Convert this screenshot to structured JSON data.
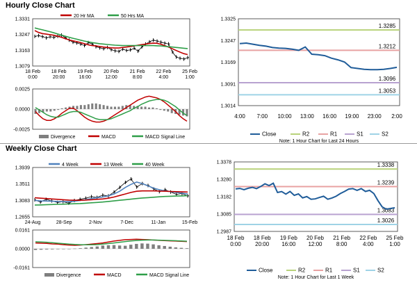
{
  "sections": {
    "hourly": {
      "title": "Hourly Close Chart"
    },
    "weekly": {
      "title": "Weekly Close Chart"
    }
  },
  "colors": {
    "close": "#1f5c99",
    "r2": "#b8d27a",
    "r1": "#e8a2a2",
    "s1": "#b8a2d0",
    "s2": "#9fd3e6",
    "ma_short": "#c00000",
    "ma_long": "#2e9e48",
    "ma4": "#4f81bd",
    "macd": "#c00000",
    "signal": "#2e9e48",
    "divergence": "#7f7f7f",
    "price": "#000000"
  },
  "chart_data": [
    {
      "id": "hourly-price",
      "type": "line",
      "title": "",
      "legend": [
        "20 Hr MA",
        "50 Hrs MA"
      ],
      "y_ticks": [
        "1.3331",
        "1.3247",
        "1.3163",
        "1.3079"
      ],
      "ylim": [
        1.3079,
        1.3331
      ],
      "x_ticks": [
        [
          "18 Feb",
          "0:00"
        ],
        [
          "18 Feb",
          "20:00"
        ],
        [
          "19 Feb",
          "16:00"
        ],
        [
          "20 Feb",
          "12:00"
        ],
        [
          "21 Feb",
          "8:00"
        ],
        [
          "22 Feb",
          "4:00"
        ],
        [
          "25 Feb",
          "1:00"
        ]
      ],
      "series": [
        {
          "name": "Close",
          "values": [
            1.3237,
            1.3241,
            1.3236,
            1.3229,
            1.3235,
            1.3232,
            1.3238,
            1.3244,
            1.323,
            1.3217,
            1.3206,
            1.3202,
            1.3196,
            1.3188,
            1.3204,
            1.3197,
            1.3182,
            1.3176,
            1.3171,
            1.3178,
            1.3166,
            1.316,
            1.3157,
            1.3169,
            1.3162,
            1.3165,
            1.3174,
            1.3158,
            1.3181,
            1.3196,
            1.3208,
            1.3217,
            1.3212,
            1.3206,
            1.3201,
            1.3197,
            1.3154,
            1.3127,
            1.312,
            1.3116,
            1.3124
          ]
        },
        {
          "name": "20 Hr MA",
          "values": [
            1.3268,
            1.3258,
            1.3252,
            1.3249,
            1.3246,
            1.3243,
            1.3238,
            1.3232,
            1.3225,
            1.3218,
            1.3213,
            1.3209,
            1.3204,
            1.3198,
            1.3192,
            1.3188,
            1.3186,
            1.3183,
            1.318,
            1.3178,
            1.3176,
            1.3175,
            1.3175,
            1.3178,
            1.318,
            1.3183,
            1.3186,
            1.319,
            1.3193,
            1.3196,
            1.3199,
            1.3201,
            1.32,
            1.3195,
            1.3188,
            1.318,
            1.3171,
            1.3162,
            1.3153,
            1.3145,
            1.314
          ]
        },
        {
          "name": "50 Hrs MA",
          "values": [
            1.3282,
            1.3277,
            1.3272,
            1.3267,
            1.3262,
            1.3256,
            1.325,
            1.3244,
            1.3238,
            1.3232,
            1.3227,
            1.3222,
            1.3217,
            1.3212,
            1.3208,
            1.3204,
            1.3201,
            1.3198,
            1.3196,
            1.3194,
            1.3192,
            1.319,
            1.3189,
            1.3188,
            1.3188,
            1.3188,
            1.3188,
            1.3188,
            1.3188,
            1.3188,
            1.3188,
            1.3188,
            1.3187,
            1.3186,
            1.3184,
            1.3182,
            1.318,
            1.3178,
            1.3176,
            1.3174,
            1.3172
          ]
        }
      ]
    },
    {
      "id": "hourly-macd",
      "type": "bar",
      "y_ticks": [
        "0.0025",
        "0.0000",
        "-0.0025"
      ],
      "ylim": [
        -0.0025,
        0.0025
      ],
      "legend": [
        "Divergence",
        "MACD",
        "MACD Signal Line"
      ],
      "series": [
        {
          "name": "Divergence",
          "values": [
            -0.0006,
            -0.0005,
            -0.0004,
            -0.0003,
            -0.0003,
            -0.0002,
            -0.0001,
            0.0001,
            0.0002,
            0.0003,
            0.0004,
            0.0004,
            0.0005,
            0.0005,
            0.0006,
            0.0007,
            0.0007,
            0.0006,
            0.0005,
            0.0004,
            0.0003,
            0.0003,
            0.0003,
            0.0004,
            0.0005,
            0.0005,
            0.0004,
            0.0004,
            0.0003,
            0.0003,
            0.0002,
            0.0002,
            0.0001,
            -0.0001,
            -0.0002,
            -0.0003,
            -0.0005,
            -0.0006,
            -0.0007,
            -0.0008,
            -0.0009
          ]
        },
        {
          "name": "MACD",
          "values": [
            -0.0003,
            -0.0008,
            -0.0012,
            -0.0014,
            -0.0014,
            -0.0012,
            -0.0009,
            -0.0005,
            -0.0002,
            0.0001,
            0.0001,
            -0.0002,
            -0.0006,
            -0.001,
            -0.0013,
            -0.0015,
            -0.0016,
            -0.0016,
            -0.0015,
            -0.0013,
            -0.001,
            -0.0007,
            -0.0004,
            -0.0001,
            0.0002,
            0.0005,
            0.0008,
            0.0011,
            0.0013,
            0.0015,
            0.0016,
            0.0015,
            0.0014,
            0.0012,
            0.0009,
            0.0005,
            0.0001,
            -0.0003,
            -0.0008,
            -0.0012,
            -0.0015
          ]
        },
        {
          "name": "MACD Signal Line",
          "values": [
            0.0002,
            -0.0001,
            -0.0004,
            -0.0007,
            -0.0009,
            -0.001,
            -0.001,
            -0.0008,
            -0.0006,
            -0.0004,
            -0.0003,
            -0.0003,
            -0.0004,
            -0.0006,
            -0.0008,
            -0.001,
            -0.0012,
            -0.0013,
            -0.0013,
            -0.0013,
            -0.0012,
            -0.001,
            -0.0008,
            -0.0006,
            -0.0004,
            -0.0002,
            0.0001,
            0.0003,
            0.0006,
            0.0008,
            0.001,
            0.0011,
            0.0012,
            0.0012,
            0.0011,
            0.0009,
            0.0006,
            0.0003,
            -0.0001,
            -0.0005,
            -0.0008
          ]
        }
      ]
    },
    {
      "id": "hourly-levels",
      "type": "line",
      "y_ticks": [
        "1.3325",
        "1.3247",
        "1.3169",
        "1.3091",
        "1.3014"
      ],
      "ylim": [
        1.3014,
        1.3325
      ],
      "x_ticks": [
        "4:00",
        "7:00",
        "10:00",
        "13:00",
        "16:00",
        "19:00",
        "23:00",
        "2:00"
      ],
      "level_labels": [
        "1.3285",
        "1.3212",
        "1.3096",
        "1.3053"
      ],
      "legend": [
        "Close",
        "R2",
        "R1",
        "S1",
        "S2"
      ],
      "note": "Note: 1 Hour Chart for Last 24 Hours",
      "series": [
        {
          "name": "Close",
          "values": [
            1.3236,
            1.3238,
            1.3234,
            1.323,
            1.3227,
            1.3222,
            1.322,
            1.3219,
            1.3216,
            1.3212,
            1.3224,
            1.3198,
            1.3196,
            1.3193,
            1.3184,
            1.3178,
            1.317,
            1.315,
            1.3147,
            1.3144,
            1.3143,
            1.3143,
            1.3144,
            1.3147,
            1.3151
          ]
        },
        {
          "name": "R2",
          "values": [
            1.3285
          ]
        },
        {
          "name": "R1",
          "values": [
            1.3212
          ]
        },
        {
          "name": "S1",
          "values": [
            1.3096
          ]
        },
        {
          "name": "S2",
          "values": [
            1.3053
          ]
        }
      ]
    },
    {
      "id": "weekly-price",
      "type": "line",
      "legend": [
        "4 Week",
        "13 Week",
        "40 Week"
      ],
      "y_ticks": [
        "1.3939",
        "1.3511",
        "1.3083",
        "1.2655"
      ],
      "ylim": [
        1.2655,
        1.3939
      ],
      "x_ticks": [
        "24-Aug",
        "28-Sep",
        "2-Nov",
        "7-Dec",
        "11-Jan",
        "15-Feb"
      ],
      "series": [
        {
          "name": "Close",
          "values": [
            1.3095,
            1.304,
            1.311,
            1.307,
            1.303,
            1.305,
            1.301,
            1.308,
            1.311,
            1.314,
            1.318,
            1.316,
            1.322,
            1.32,
            1.33,
            1.342,
            1.355,
            1.364,
            1.343,
            1.352,
            1.347,
            1.338,
            1.331,
            1.336,
            1.33,
            1.324,
            1.326,
            1.32
          ]
        },
        {
          "name": "4 Week",
          "values": [
            1.308,
            1.307,
            1.3065,
            1.306,
            1.3055,
            1.3052,
            1.305,
            1.306,
            1.308,
            1.31,
            1.313,
            1.315,
            1.317,
            1.32,
            1.325,
            1.332,
            1.342,
            1.35,
            1.356,
            1.352,
            1.346,
            1.34,
            1.336,
            1.333,
            1.331,
            1.329,
            1.327,
            1.325
          ]
        },
        {
          "name": "13 Week",
          "values": [
            1.315,
            1.314,
            1.313,
            1.312,
            1.311,
            1.31,
            1.309,
            1.3085,
            1.3085,
            1.309,
            1.31,
            1.311,
            1.312,
            1.314,
            1.317,
            1.321,
            1.325,
            1.329,
            1.332,
            1.333,
            1.333,
            1.333,
            1.3325,
            1.332,
            1.3315,
            1.331,
            1.3305,
            1.33
          ]
        },
        {
          "name": "40 Week",
          "values": [
            1.296,
            1.2965,
            1.297,
            1.2975,
            1.298,
            1.2985,
            1.299,
            1.2995,
            1.3,
            1.301,
            1.302,
            1.303,
            1.304,
            1.3055,
            1.307,
            1.3085,
            1.31,
            1.3115,
            1.313,
            1.3145,
            1.3155,
            1.3165,
            1.3175,
            1.3185,
            1.319,
            1.3195,
            1.32,
            1.3205
          ]
        }
      ]
    },
    {
      "id": "weekly-macd",
      "type": "bar",
      "y_ticks": [
        "0.0161",
        "0.0000",
        "-0.0161"
      ],
      "ylim": [
        -0.0161,
        0.0161
      ],
      "legend": [
        "Divergence",
        "MACD",
        "MACD Signal Line"
      ],
      "series": [
        {
          "name": "Divergence",
          "values": [
            -0.001,
            -0.0008,
            -0.0006,
            -0.0005,
            -0.0004,
            -0.0002,
            0.0,
            0.0002,
            0.0005,
            0.001,
            0.0015,
            0.002,
            0.0028,
            0.003,
            0.0032,
            0.0028,
            0.0026,
            0.0035,
            0.0042,
            0.0046,
            0.0044,
            0.0038,
            0.003,
            0.0024,
            0.0018,
            0.0012,
            0.0008,
            0.0005
          ]
        },
        {
          "name": "MACD",
          "values": [
            0.005,
            0.0048,
            0.0046,
            0.0042,
            0.004,
            0.0035,
            0.0032,
            0.003,
            0.0032,
            0.0036,
            0.004,
            0.0045,
            0.005,
            0.0058,
            0.0066,
            0.0072,
            0.0078,
            0.008,
            0.0082,
            0.008,
            0.0078,
            0.0075,
            0.0072,
            0.007,
            0.0068,
            0.0066,
            0.0064,
            0.0062
          ]
        },
        {
          "name": "MACD Signal Line",
          "values": [
            0.006,
            0.0058,
            0.0056,
            0.0052,
            0.0048,
            0.0044,
            0.004,
            0.0037,
            0.0035,
            0.0034,
            0.0034,
            0.0036,
            0.004,
            0.0045,
            0.005,
            0.0056,
            0.0062,
            0.0067,
            0.0071,
            0.0074,
            0.0075,
            0.0075,
            0.0074,
            0.0072,
            0.0071,
            0.0069,
            0.0067,
            0.0065
          ]
        }
      ]
    },
    {
      "id": "weekly-levels",
      "type": "line",
      "y_ticks": [
        "1.3378",
        "1.3280",
        "1.3182",
        "1.3085",
        "1.2987"
      ],
      "ylim": [
        1.2987,
        1.3378
      ],
      "x_ticks": [
        [
          "18 Feb",
          "0:00"
        ],
        [
          "18 Feb",
          "20:00"
        ],
        [
          "19 Feb",
          "16:00"
        ],
        [
          "20 Feb",
          "12:00"
        ],
        [
          "21 Feb",
          "8:00"
        ],
        [
          "22 Feb",
          "4:00"
        ],
        [
          "25 Feb",
          "1:00"
        ]
      ],
      "level_labels": [
        "1.3338",
        "1.3239",
        "1.3083",
        "1.3026"
      ],
      "legend": [
        "Close",
        "R2",
        "R1",
        "S1",
        "S2"
      ],
      "note": "Note: 1 Hour Chart for Last 1 Week",
      "series": [
        {
          "name": "Close",
          "values": [
            1.3226,
            1.3229,
            1.3222,
            1.323,
            1.3235,
            1.3228,
            1.324,
            1.3255,
            1.3245,
            1.3258,
            1.3206,
            1.3211,
            1.3197,
            1.3212,
            1.319,
            1.3198,
            1.3176,
            1.3183,
            1.3168,
            1.317,
            1.3178,
            1.3185,
            1.3168,
            1.3175,
            1.3185,
            1.32,
            1.3212,
            1.3225,
            1.3228,
            1.3218,
            1.3228,
            1.3212,
            1.3218,
            1.32,
            1.316,
            1.3125,
            1.3112,
            1.3116,
            1.312
          ]
        },
        {
          "name": "R2",
          "values": [
            1.3338
          ]
        },
        {
          "name": "R1",
          "values": [
            1.3239
          ]
        },
        {
          "name": "S1",
          "values": [
            1.3083
          ]
        },
        {
          "name": "S2",
          "values": [
            1.3026
          ]
        }
      ]
    }
  ]
}
